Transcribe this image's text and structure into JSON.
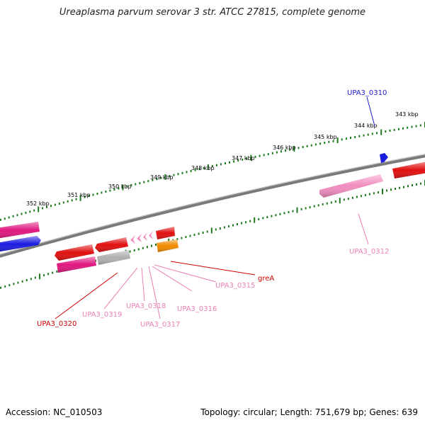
{
  "title": "Ureaplasma parvum serovar 3 str. ATCC 27815, complete genome",
  "footer": {
    "accession": "Accession: NC_010503",
    "summary": "Topology: circular; Length: 751,679 bp; Genes: 639"
  },
  "colors": {
    "backbone": "#7a7a7a",
    "tick": "#1f7a1f",
    "red": "#e01010",
    "pink": "#f08cc0",
    "magenta": "#e0187f",
    "blue": "#1c1ce0",
    "gray": "#b0b0b0",
    "orange": "#f08a00",
    "label_pink": "#e97fb5",
    "label_red": "#cc0000",
    "label_blue": "#1a1acc"
  },
  "scale_labels": [
    "343 kbp",
    "344 kbp",
    "345 kbp",
    "346 kbp",
    "347 kbp",
    "348 kbp",
    "349 kbp",
    "350 kbp",
    "351 kbp",
    "352 kbp"
  ],
  "genes": [
    {
      "label": "UPA3_0310",
      "color": "blue",
      "label_color": "label_blue"
    },
    {
      "label": "UPA3_0312",
      "color": "pink",
      "label_color": "label_pink"
    },
    {
      "label": "greA",
      "color": "red",
      "label_color": "label_red"
    },
    {
      "label": "UPA3_0315",
      "color": "orange",
      "label_color": "label_pink"
    },
    {
      "label": "UPA3_0316",
      "color": "pink",
      "label_color": "label_pink"
    },
    {
      "label": "UPA3_0317",
      "color": "pink",
      "label_color": "label_pink"
    },
    {
      "label": "UPA3_0318",
      "color": "pink",
      "label_color": "label_pink"
    },
    {
      "label": "UPA3_0319",
      "color": "gray",
      "label_color": "label_pink"
    },
    {
      "label": "UPA3_0320",
      "color": "magenta",
      "label_color": "label_red"
    }
  ]
}
